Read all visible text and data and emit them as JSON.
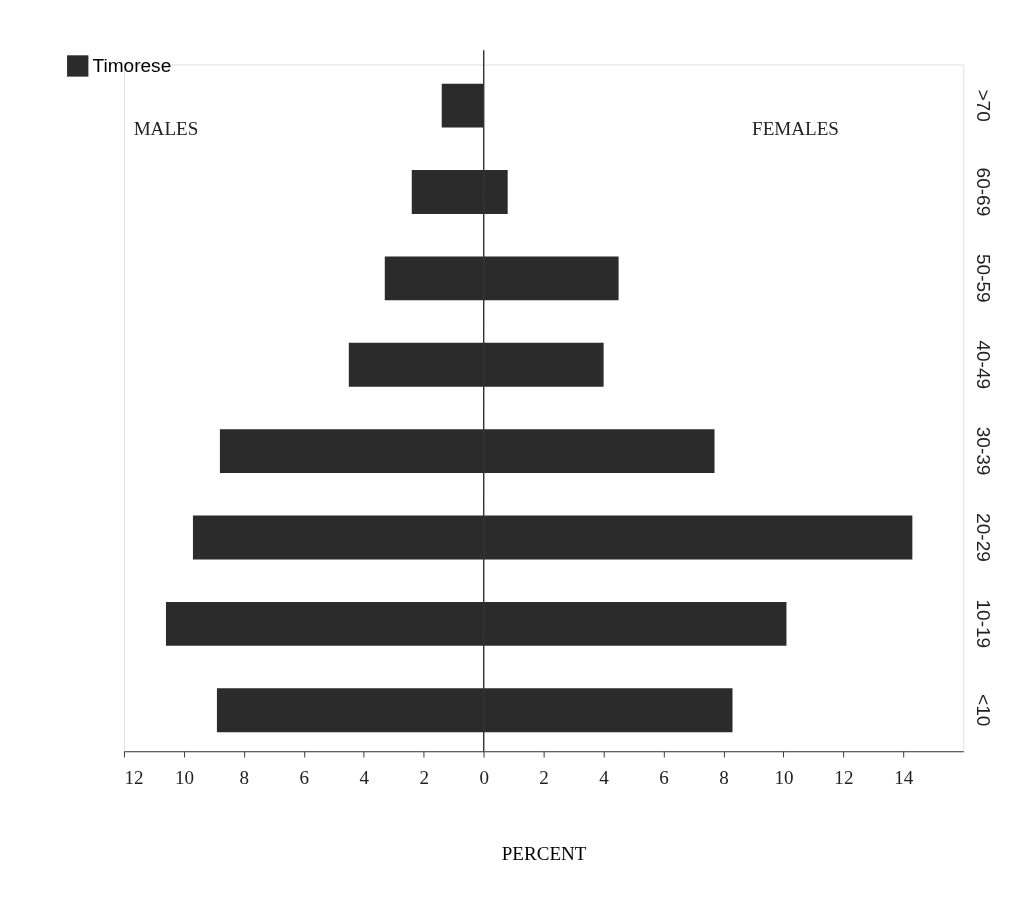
{
  "chart_data": {
    "type": "bar",
    "orientation": "horizontal",
    "xlabel": "PERCENT",
    "categories": [
      ">70",
      "60-69",
      "50-59",
      "40-49",
      "30-39",
      "20-29",
      "10-19",
      "<10"
    ],
    "series": [
      {
        "name": "Timorese",
        "color": "#2b2b2b",
        "base": [
          -1.4,
          -2.4,
          -3.3,
          -4.5,
          -8.8,
          -9.7,
          -10.6,
          -8.9
        ],
        "values": [
          1.4,
          3.2,
          7.8,
          8.5,
          16.5,
          24.0,
          20.7,
          17.2
        ]
      }
    ],
    "xlim": [
      -12,
      16
    ],
    "xticks": [
      {
        "value": -12,
        "label": "12"
      },
      {
        "value": -10,
        "label": "10"
      },
      {
        "value": -8,
        "label": "8"
      },
      {
        "value": -6,
        "label": "6"
      },
      {
        "value": -4,
        "label": "4"
      },
      {
        "value": -2,
        "label": "2"
      },
      0,
      2,
      4,
      6,
      8,
      10,
      12,
      14
    ],
    "ref_lines": [
      {
        "axis": "x",
        "value": 0,
        "color": "#333333"
      }
    ],
    "annotations": [
      "MALES",
      "FEMALES"
    ],
    "legend": "top left",
    "grid": false
  }
}
